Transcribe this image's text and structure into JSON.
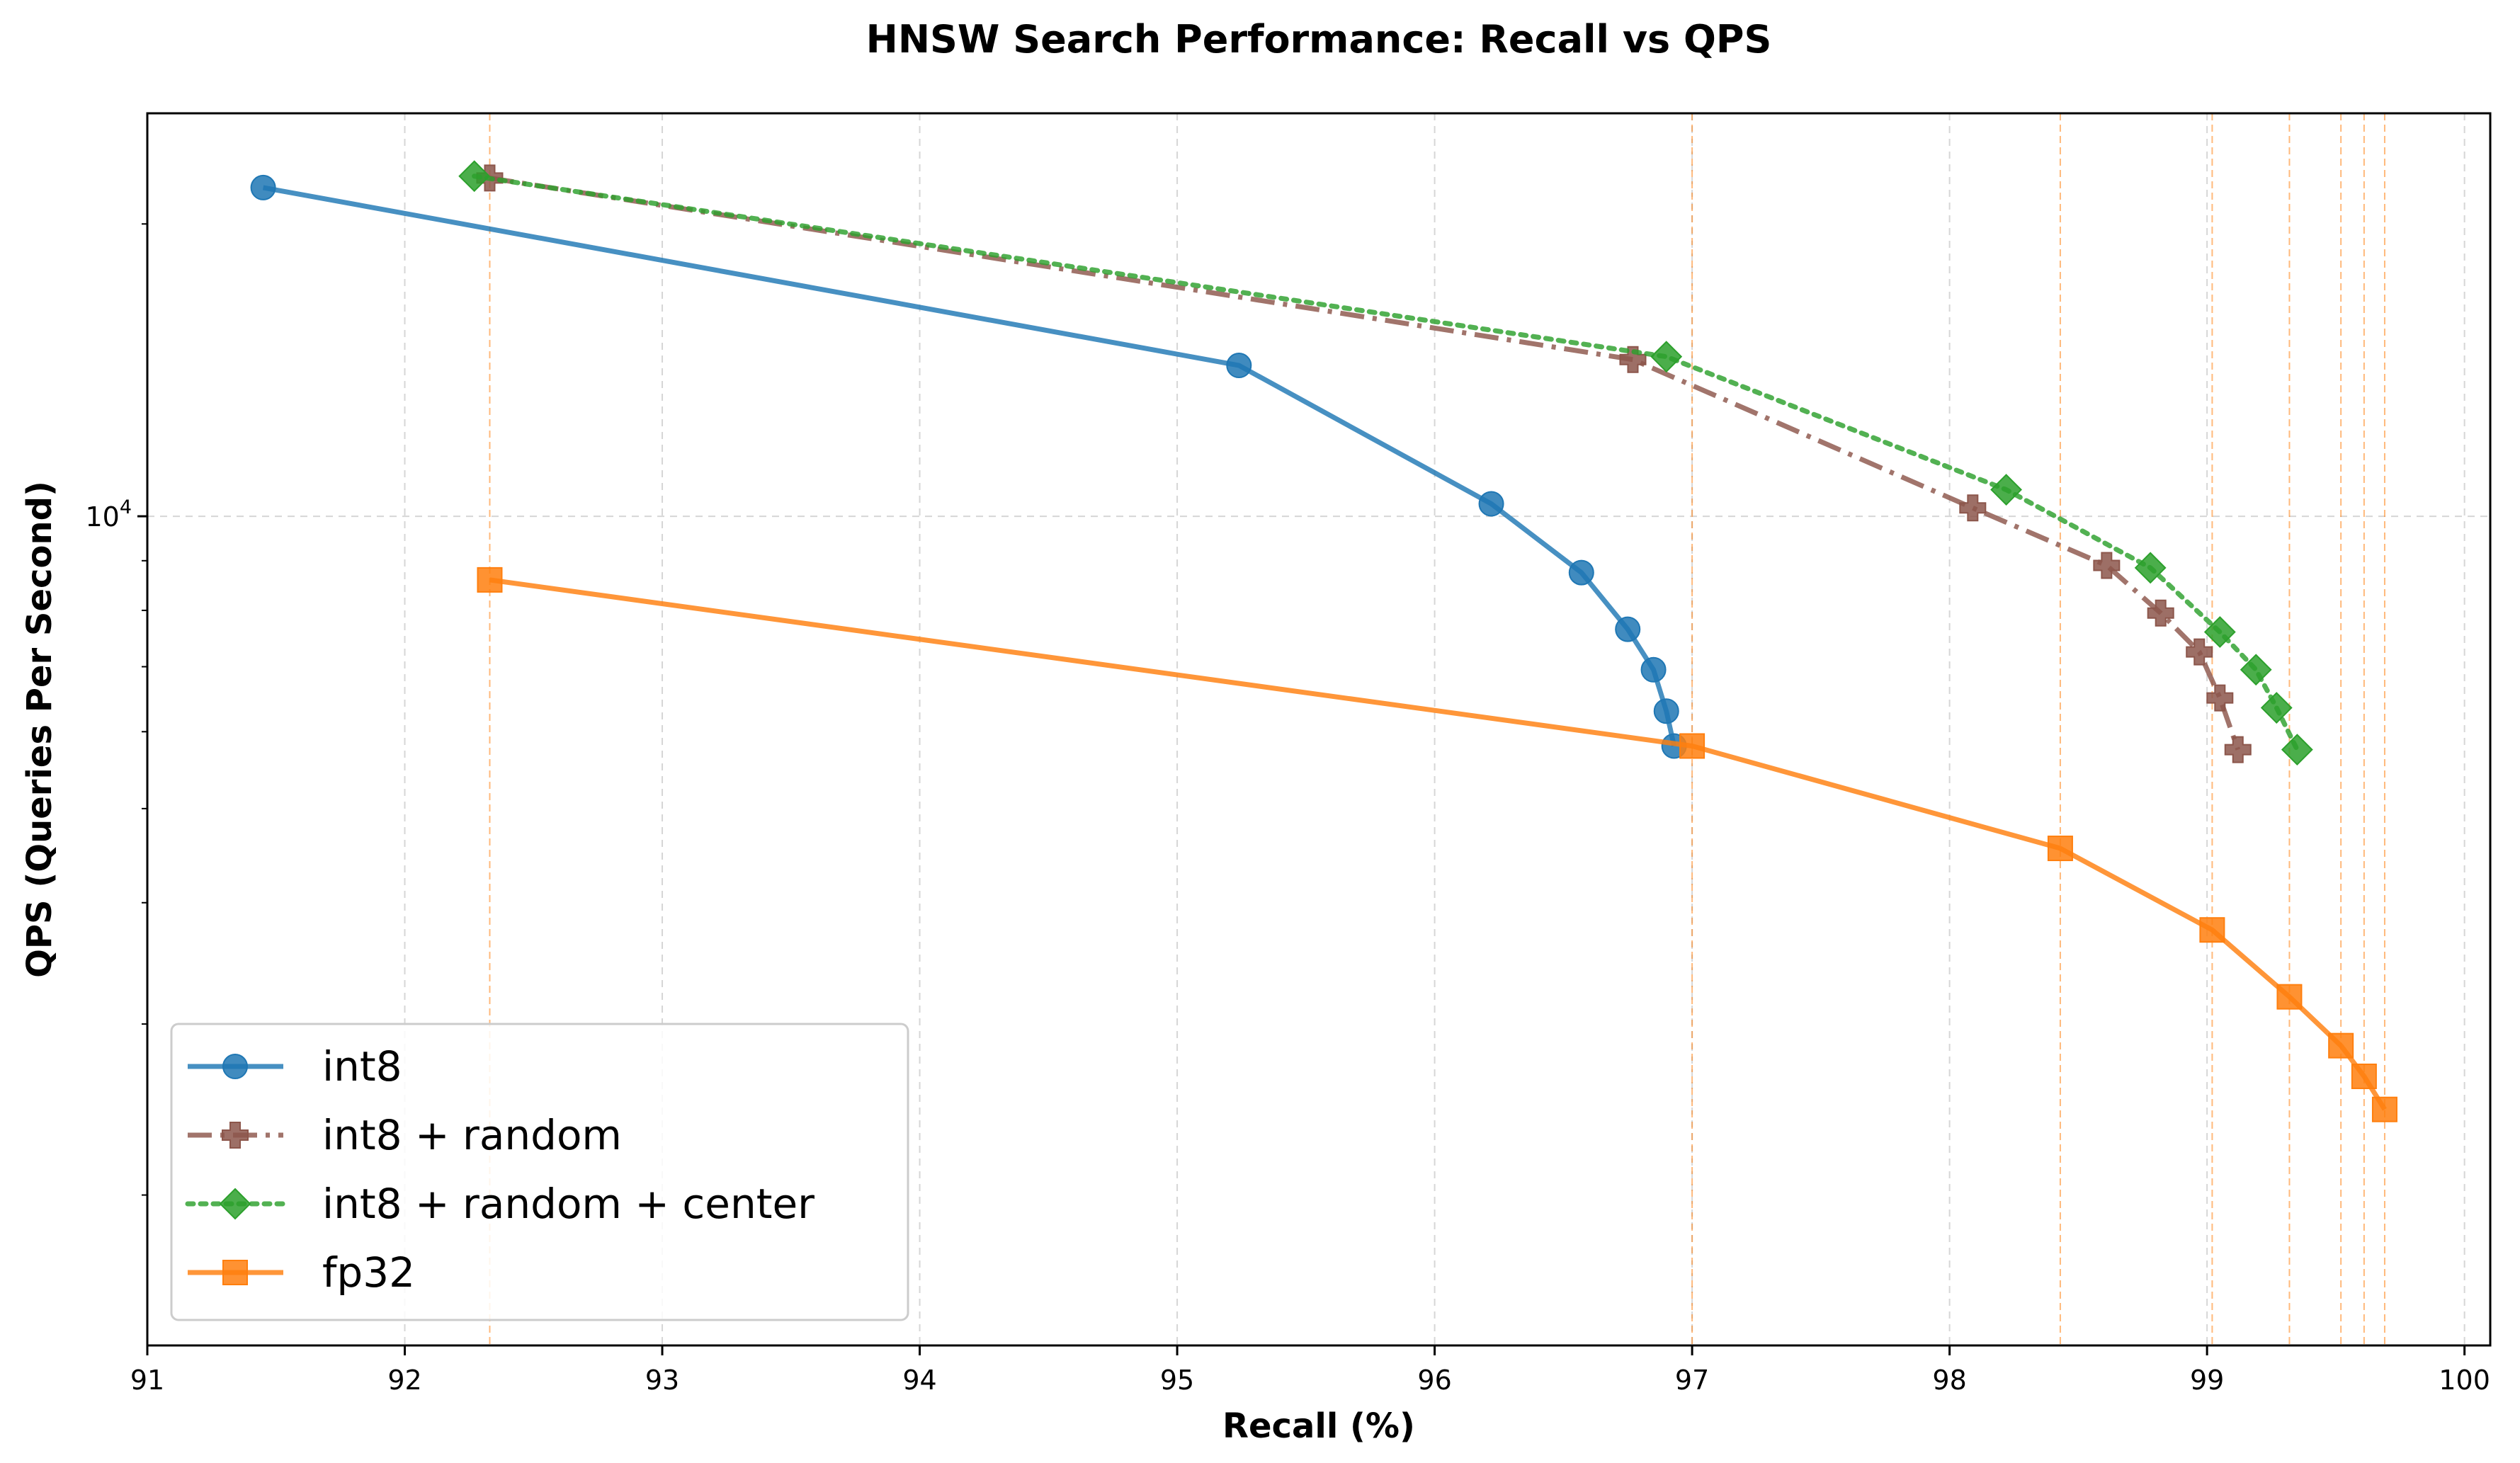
{
  "chart_data": {
    "type": "line",
    "title": "HNSW Search Performance: Recall vs QPS",
    "xlabel": "Recall (%)",
    "ylabel": "QPS (Queries Per Second)",
    "xlim": [
      91,
      100.1
    ],
    "ylim": [
      1400,
      26000
    ],
    "yscale": "log",
    "x_ticks": [
      "91",
      "92",
      "93",
      "94",
      "95",
      "96",
      "97",
      "98",
      "99",
      "100"
    ],
    "y_tick_label": {
      "base": "10",
      "exponent": "4"
    },
    "grid": true,
    "legend_position": "lower-left",
    "series": [
      {
        "name": "int8",
        "color": "#1f77b4",
        "marker": "circle",
        "linestyle": "solid",
        "x": [
          91.45,
          95.24,
          96.22,
          96.57,
          96.75,
          96.85,
          96.9,
          96.93
        ],
        "y": [
          21800,
          14300,
          10300,
          8750,
          7650,
          6950,
          6300,
          5800
        ]
      },
      {
        "name": "int8 + random",
        "color": "#8c564b",
        "marker": "plus",
        "linestyle": "dashdot",
        "x": [
          92.33,
          96.77,
          98.09,
          98.61,
          98.82,
          98.97,
          99.05,
          99.12
        ],
        "y": [
          22300,
          14500,
          10200,
          8900,
          7950,
          7250,
          6500,
          5750
        ]
      },
      {
        "name": "int8 + random + center",
        "color": "#2ca02c",
        "marker": "diamond",
        "linestyle": "dotted",
        "x": [
          92.27,
          96.9,
          98.22,
          98.78,
          99.05,
          99.19,
          99.27,
          99.35
        ],
        "y": [
          22400,
          14600,
          10650,
          8850,
          7600,
          6950,
          6350,
          5750
        ]
      },
      {
        "name": "fp32",
        "color": "#ff7f0e",
        "marker": "square",
        "linestyle": "solid",
        "x": [
          92.33,
          97.0,
          98.43,
          99.02,
          99.32,
          99.52,
          99.61,
          99.69
        ],
        "y": [
          8600,
          5800,
          4550,
          3750,
          3200,
          2850,
          2650,
          2450
        ]
      }
    ],
    "vertical_reference_lines": {
      "color": "#ff7f0e",
      "linestyle": "dashed",
      "x": [
        92.33,
        97.0,
        98.43,
        99.02,
        99.32,
        99.52,
        99.61,
        99.69
      ]
    }
  }
}
